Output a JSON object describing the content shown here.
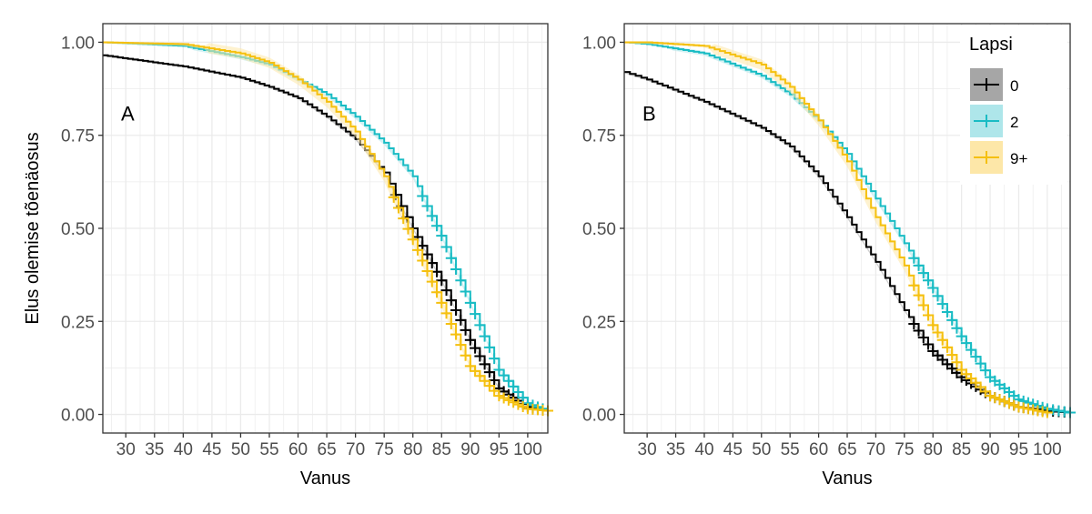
{
  "chart_data": {
    "type": "line",
    "subtype": "kaplan-meier step",
    "legend": {
      "title": "Lapsi",
      "placement": "top-right inside panel B",
      "entries": [
        {
          "label": "0",
          "color": "#000000",
          "band": "#a6a6a6"
        },
        {
          "label": "2",
          "color": "#19bcc4",
          "band": "#aee6ea"
        },
        {
          "label": "9+",
          "color": "#f5c00f",
          "band": "#fde7a8"
        }
      ]
    },
    "ylabel": "Elus olemise tõenäosus",
    "yticks": [
      "0.00",
      "0.25",
      "0.50",
      "0.75",
      "1.00"
    ],
    "ylim": [
      -0.05,
      1.05
    ],
    "grid": true,
    "panels": [
      {
        "tag": "A",
        "xlabel": "Vanus",
        "xlim": [
          26,
          103.5
        ],
        "xticks": [
          "30",
          "35",
          "40",
          "45",
          "50",
          "55",
          "60",
          "65",
          "70",
          "75",
          "80",
          "85",
          "90",
          "95",
          "100"
        ],
        "series": [
          {
            "name": "0",
            "x": [
              26,
              40,
              50,
              55,
              60,
              65,
              70,
              75,
              78,
              80,
              85,
              90,
              95,
              100,
              103.5
            ],
            "y": [
              0.965,
              0.935,
              0.905,
              0.88,
              0.85,
              0.8,
              0.74,
              0.65,
              0.56,
              0.5,
              0.36,
              0.2,
              0.07,
              0.02,
              0.01
            ]
          },
          {
            "name": "2",
            "x": [
              26,
              40,
              50,
              55,
              60,
              65,
              70,
              75,
              80,
              85,
              90,
              95,
              100,
              103.5
            ],
            "y": [
              1.0,
              0.99,
              0.96,
              0.94,
              0.9,
              0.86,
              0.8,
              0.73,
              0.64,
              0.48,
              0.3,
              0.12,
              0.03,
              0.01
            ]
          },
          {
            "name": "9+",
            "x": [
              26,
              40,
              50,
              55,
              60,
              65,
              70,
              75,
              80,
              85,
              90,
              95,
              100,
              103.5
            ],
            "y": [
              1.0,
              0.995,
              0.97,
              0.945,
              0.9,
              0.84,
              0.76,
              0.64,
              0.47,
              0.3,
              0.13,
              0.05,
              0.015,
              0.01
            ]
          }
        ]
      },
      {
        "tag": "B",
        "xlabel": "Vanus",
        "xlim": [
          26,
          104
        ],
        "xticks": [
          "30",
          "35",
          "40",
          "45",
          "50",
          "55",
          "60",
          "65",
          "70",
          "75",
          "80",
          "85",
          "90",
          "95",
          "100"
        ],
        "series": [
          {
            "name": "0",
            "x": [
              26,
              30,
              40,
              50,
              55,
              60,
              65,
              70,
              75,
              80,
              85,
              90,
              95,
              100,
              104
            ],
            "y": [
              0.92,
              0.9,
              0.84,
              0.77,
              0.72,
              0.64,
              0.53,
              0.41,
              0.28,
              0.17,
              0.1,
              0.05,
              0.02,
              0.01,
              0.005
            ]
          },
          {
            "name": "2",
            "x": [
              26,
              30,
              40,
              50,
              55,
              60,
              65,
              70,
              75,
              80,
              85,
              90,
              95,
              100,
              104
            ],
            "y": [
              1.0,
              0.995,
              0.97,
              0.91,
              0.86,
              0.79,
              0.7,
              0.58,
              0.46,
              0.34,
              0.21,
              0.1,
              0.04,
              0.015,
              0.005
            ]
          },
          {
            "name": "9+",
            "x": [
              26,
              30,
              40,
              50,
              55,
              60,
              65,
              70,
              75,
              80,
              85,
              90,
              95,
              100
            ],
            "y": [
              1.0,
              1.0,
              0.99,
              0.94,
              0.88,
              0.79,
              0.68,
              0.53,
              0.4,
              0.24,
              0.12,
              0.05,
              0.02,
              0.005
            ]
          }
        ]
      }
    ]
  }
}
